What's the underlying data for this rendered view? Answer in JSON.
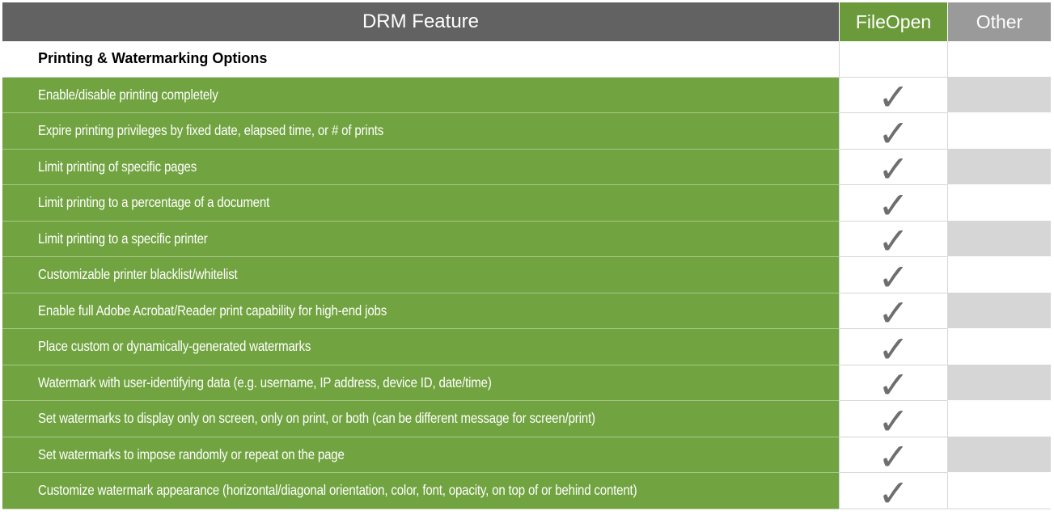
{
  "header": {
    "feature": "DRM Feature",
    "fileopen": "FileOpen",
    "other": "Other"
  },
  "section": {
    "title": "Printing & Watermarking Options"
  },
  "rows": [
    {
      "label": "Enable/disable printing completely",
      "fileopen": "✓",
      "other_shaded": true
    },
    {
      "label": "Expire printing privileges by fixed date, elapsed time, or # of prints",
      "fileopen": "✓",
      "other_shaded": false
    },
    {
      "label": "Limit printing of specific pages",
      "fileopen": "✓",
      "other_shaded": true
    },
    {
      "label": "Limit printing to a percentage of a document",
      "fileopen": "✓",
      "other_shaded": false
    },
    {
      "label": "Limit printing to a specific printer",
      "fileopen": "✓",
      "other_shaded": true
    },
    {
      "label": "Customizable printer blacklist/whitelist",
      "fileopen": "✓",
      "other_shaded": false
    },
    {
      "label": "Enable full Adobe Acrobat/Reader print capability for high-end jobs",
      "fileopen": "✓",
      "other_shaded": true
    },
    {
      "label": "Place custom or dynamically-generated watermarks",
      "fileopen": "✓",
      "other_shaded": false
    },
    {
      "label": "Watermark with user-identifying data (e.g. username, IP address, device ID, date/time)",
      "fileopen": "✓",
      "other_shaded": true
    },
    {
      "label": "Set watermarks to display only on screen, only on print, or both (can be different message for screen/print)",
      "fileopen": "✓",
      "other_shaded": false
    },
    {
      "label": "Set watermarks to impose randomly or repeat on the page",
      "fileopen": "✓",
      "other_shaded": true
    },
    {
      "label": "Customize watermark appearance (horizontal/diagonal orientation, color, font, opacity, on top of or behind content)",
      "fileopen": "✓",
      "other_shaded": false
    }
  ],
  "colors": {
    "header_gray": "#626262",
    "fileopen_green": "#6a9a3a",
    "other_gray": "#9a9a9a",
    "row_green": "#71a340",
    "shade_gray": "#d6d6d6",
    "check_gray": "#6e6e6e"
  }
}
